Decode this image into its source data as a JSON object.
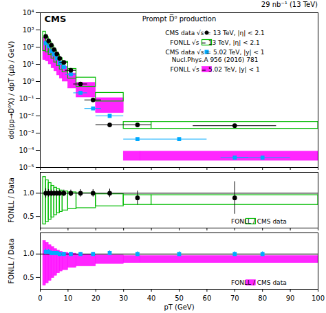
{
  "chart_data": [
    {
      "type": "errorbar",
      "title": "Prompt D̅⁰ production",
      "annotations": [
        "CMS",
        "29 nb⁻¹ (13 TeV)"
      ],
      "ylabel": "dσ(pp→D⁰X) / dpT (μb / GeV)",
      "xlim": [
        0,
        100
      ],
      "ylim": [
        1e-05,
        10000
      ],
      "xticks": [
        0,
        10,
        20,
        30,
        40,
        50,
        60,
        70,
        80,
        90,
        100
      ],
      "yticks": [
        {
          "value": 1e-05,
          "label": "10⁻⁵"
        },
        {
          "value": 0.0001,
          "label": "10⁻⁴"
        },
        {
          "value": 0.001,
          "label": "10⁻³"
        },
        {
          "value": 0.01,
          "label": "10⁻²"
        },
        {
          "value": 0.1,
          "label": "10⁻¹"
        },
        {
          "value": 1,
          "label": "10⁰"
        },
        {
          "value": 10,
          "label": "10¹"
        },
        {
          "value": 100,
          "label": "10²"
        },
        {
          "value": 1000,
          "label": "10³"
        },
        {
          "value": 10000,
          "label": "10⁴"
        }
      ],
      "log": "y",
      "tick_labels": "y",
      "legend": "upper right",
      "series": [
        {
          "name": "CMS data √s = 13 TeV, |η| < 2.1",
          "type": "errorbar",
          "marker": "circle",
          "color": "#000000",
          "x": [
            2.0,
            3.0,
            4.0,
            5.0,
            6.0,
            7.0,
            8.5,
            11.0,
            14.5,
            19.0,
            25.0,
            35.0,
            70.0
          ],
          "values": [
            420,
            230,
            130,
            72,
            40,
            22,
            13,
            4.5,
            0.72,
            0.085,
            0.003,
            0.003,
            0.0027
          ],
          "xerr": [
            0.5,
            0.5,
            0.5,
            0.5,
            0.5,
            0.5,
            1.5,
            2.0,
            2.5,
            3.0,
            5.0,
            5.0,
            15.0
          ],
          "yerr_lo": [
            40,
            20,
            12,
            7,
            4,
            2,
            1.2,
            0.4,
            0.06,
            0.007,
            0.0003,
            0.0004,
            0.0003
          ],
          "yerr_hi": [
            40,
            20,
            12,
            7,
            4,
            2,
            1.2,
            0.4,
            0.06,
            0.007,
            0.0003,
            0.0004,
            0.0003
          ]
        },
        {
          "name": "FONLL √s = 13 TeV, |η| < 2.1",
          "type": "box_outline",
          "color": "#00bb00",
          "bins": [
            1,
            2,
            3,
            4,
            5,
            6,
            7,
            8,
            10,
            13,
            20,
            30,
            40,
            100
          ],
          "lo": [
            60,
            50,
            35,
            22,
            13,
            8,
            5,
            3.5,
            1.5,
            0.5,
            0.07,
            0.0018,
            0.0018
          ],
          "hi": [
            800,
            380,
            200,
            115,
            65,
            38,
            23,
            14,
            5.5,
            1.7,
            0.22,
            0.0045,
            0.0045
          ]
        },
        {
          "name": "CMS data √s = 5.02 TeV, |y| < 1\nNucl.Phys.A 956 (2016) 781",
          "type": "errorbar",
          "marker": "square",
          "color": "#00aaff",
          "x": [
            2.0,
            3.0,
            4.0,
            5.0,
            6.0,
            7.0,
            8.5,
            11.0,
            14.5,
            19.0,
            25.0,
            35.0,
            50.0,
            70.0,
            80.0
          ],
          "values": [
            170,
            110,
            60,
            38,
            22,
            12,
            7,
            2.6,
            0.22,
            0.027,
            0.01,
            0.00045,
            0.00045,
            3.8e-05,
            3.8e-05
          ],
          "xerr": [
            0.5,
            0.5,
            0.5,
            0.5,
            0.5,
            0.5,
            1.5,
            2.0,
            2.5,
            3.0,
            5.0,
            5.0,
            10.0,
            5.0,
            10.0
          ],
          "yerr_lo": [
            15,
            9,
            5,
            3,
            2,
            1,
            0.7,
            0.22,
            0.02,
            0.002,
            0.001,
            4e-05,
            4e-05,
            3e-06,
            3e-06
          ],
          "yerr_hi": [
            15,
            9,
            5,
            3,
            2,
            1,
            0.7,
            0.22,
            0.02,
            0.002,
            0.001,
            4e-05,
            4e-05,
            3e-06,
            3e-06
          ]
        },
        {
          "name": "FONLL √s = 5.02 TeV, |y| < 1",
          "type": "box_filled",
          "color": "#ff00ff",
          "bins": [
            1,
            2,
            3,
            4,
            5,
            6,
            7,
            8,
            10,
            13,
            20,
            30,
            36,
            100
          ],
          "lo": [
            18,
            15,
            10,
            6,
            4,
            2.3,
            1.5,
            1.0,
            0.4,
            0.12,
            0.015,
            2.5e-05,
            2.5e-05
          ],
          "hi": [
            350,
            185,
            100,
            58,
            35,
            20,
            13,
            7.5,
            3.0,
            0.85,
            0.11,
            8.5e-05,
            8.5e-05
          ]
        }
      ]
    },
    {
      "type": "errorbar",
      "ylabel": "FONLL / Data",
      "xlim": [
        0,
        100
      ],
      "ylim": [
        0.25,
        1.45
      ],
      "xticks": [
        0,
        10,
        20,
        30,
        40,
        50,
        60,
        70,
        80,
        90,
        100
      ],
      "yticks": [
        0.5,
        {
          "value": 1,
          "label": "1.0"
        }
      ],
      "tick_labels": "y",
      "legend": "lower right",
      "hline": 1,
      "series": [
        {
          "name": "FONLL / CMS data",
          "type": "box_outline",
          "color": "#00bb00",
          "bins": [
            1,
            2,
            3,
            4,
            5,
            6,
            7,
            8,
            10,
            13,
            20,
            30,
            40,
            100
          ],
          "lo": [
            0.33,
            0.38,
            0.43,
            0.48,
            0.53,
            0.57,
            0.6,
            0.63,
            0.66,
            0.68,
            0.72,
            0.75,
            0.75
          ],
          "hi": [
            1.35,
            1.28,
            1.22,
            1.16,
            1.12,
            1.09,
            1.06,
            1.04,
            1.02,
            1.0,
            0.98,
            0.96,
            0.96
          ]
        },
        {
          "type": "errorbar",
          "marker": "circle",
          "color": "#000000",
          "x": [
            2.0,
            3.0,
            4.0,
            5.0,
            6.0,
            7.0,
            8.5,
            11.0,
            14.5,
            19.0,
            25.0,
            35.0,
            70.0
          ],
          "values": [
            1.0,
            1.0,
            1.0,
            1.0,
            1.0,
            1.0,
            1.0,
            1.0,
            1.0,
            1.0,
            1.0,
            0.9,
            0.9
          ],
          "yerr_lo": [
            0.1,
            0.08,
            0.07,
            0.06,
            0.06,
            0.06,
            0.07,
            0.07,
            0.08,
            0.08,
            0.09,
            0.15,
            0.35
          ],
          "yerr_hi": [
            0.1,
            0.08,
            0.07,
            0.06,
            0.06,
            0.06,
            0.07,
            0.07,
            0.08,
            0.08,
            0.09,
            0.15,
            0.35
          ]
        }
      ]
    },
    {
      "type": "errorbar",
      "xlabel": "pT (GeV)",
      "ylabel": "FONLL / Data",
      "xlim": [
        0,
        100
      ],
      "ylim": [
        0.25,
        1.45
      ],
      "xticks": [
        0,
        10,
        20,
        30,
        40,
        50,
        60,
        70,
        80,
        90,
        100
      ],
      "yticks": [
        0.5,
        {
          "value": 1,
          "label": "1.0"
        }
      ],
      "legend": "lower right",
      "hline": 1,
      "series": [
        {
          "name": "FONLL / CMS data",
          "type": "box_filled",
          "color": "#ff00ff",
          "bins": [
            1,
            2,
            3,
            4,
            5,
            6,
            7,
            8,
            10,
            13,
            20,
            30,
            36,
            100
          ],
          "lo": [
            0.33,
            0.38,
            0.43,
            0.49,
            0.54,
            0.59,
            0.63,
            0.66,
            0.71,
            0.74,
            0.79,
            0.81,
            0.81
          ],
          "hi": [
            1.28,
            1.24,
            1.19,
            1.15,
            1.11,
            1.08,
            1.05,
            1.03,
            1.01,
            0.99,
            0.97,
            0.96,
            0.96
          ]
        },
        {
          "type": "errorbar",
          "marker": "square",
          "color": "#00aaff",
          "x": [
            2.0,
            3.0,
            4.0,
            5.0,
            6.0,
            7.0,
            8.5,
            11.0,
            14.5,
            19.0,
            25.0,
            35.0,
            50.0,
            70.0,
            80.0
          ],
          "values": [
            1.05,
            1.05,
            1.02,
            1.02,
            1.02,
            1.0,
            1.0,
            1.0,
            1.0,
            1.0,
            1.02,
            1.0,
            1.0,
            1.0,
            1.0
          ],
          "yerr_lo": [
            0.06,
            0.05,
            0.05,
            0.04,
            0.04,
            0.04,
            0.04,
            0.04,
            0.04,
            0.04,
            0.05,
            0.05,
            0.05,
            0.05,
            0.05
          ],
          "yerr_hi": [
            0.06,
            0.05,
            0.05,
            0.04,
            0.04,
            0.04,
            0.04,
            0.04,
            0.04,
            0.04,
            0.05,
            0.05,
            0.05,
            0.05,
            0.05
          ]
        }
      ]
    }
  ]
}
